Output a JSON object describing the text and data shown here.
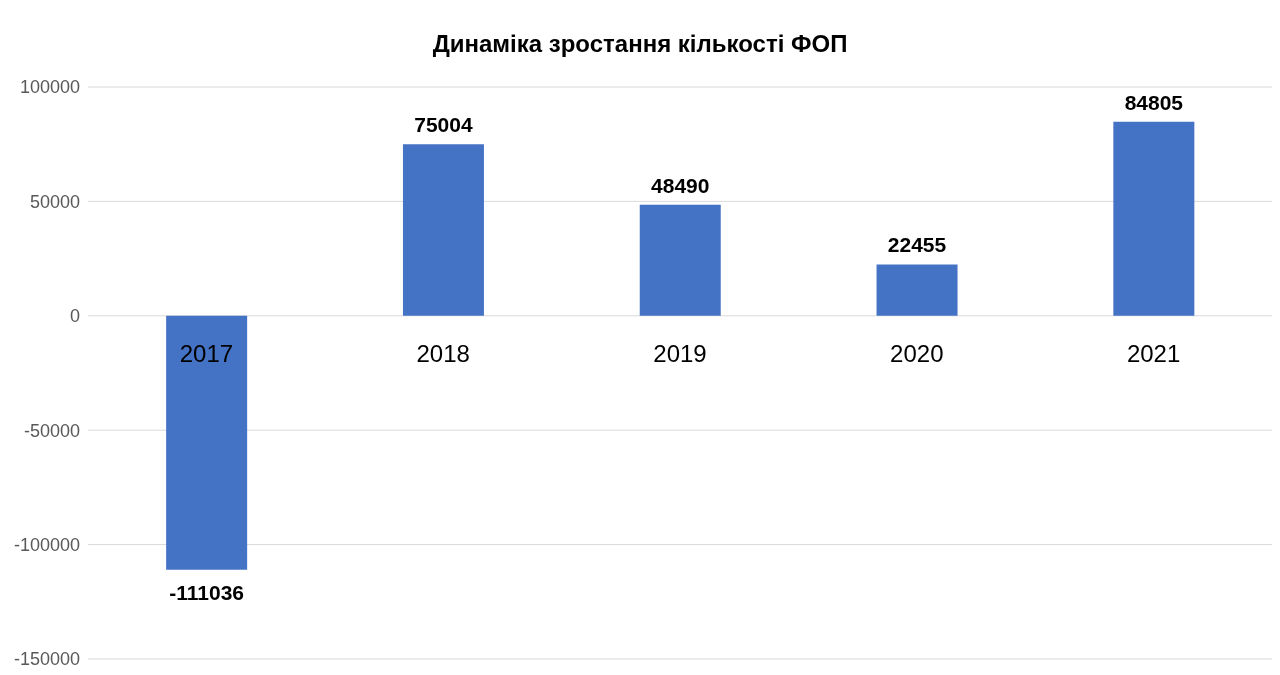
{
  "chart_data": {
    "type": "bar",
    "title": "Динаміка зростання кількості ФОП",
    "categories": [
      "2017",
      "2018",
      "2019",
      "2020",
      "2021"
    ],
    "values": [
      -111036,
      75004,
      48490,
      22455,
      84805
    ],
    "color": "#4472c4",
    "ylim": [
      -150000,
      100000
    ],
    "yticks": [
      -150000,
      -100000,
      -50000,
      0,
      50000,
      100000
    ],
    "grid": "y",
    "data_labels": true
  }
}
